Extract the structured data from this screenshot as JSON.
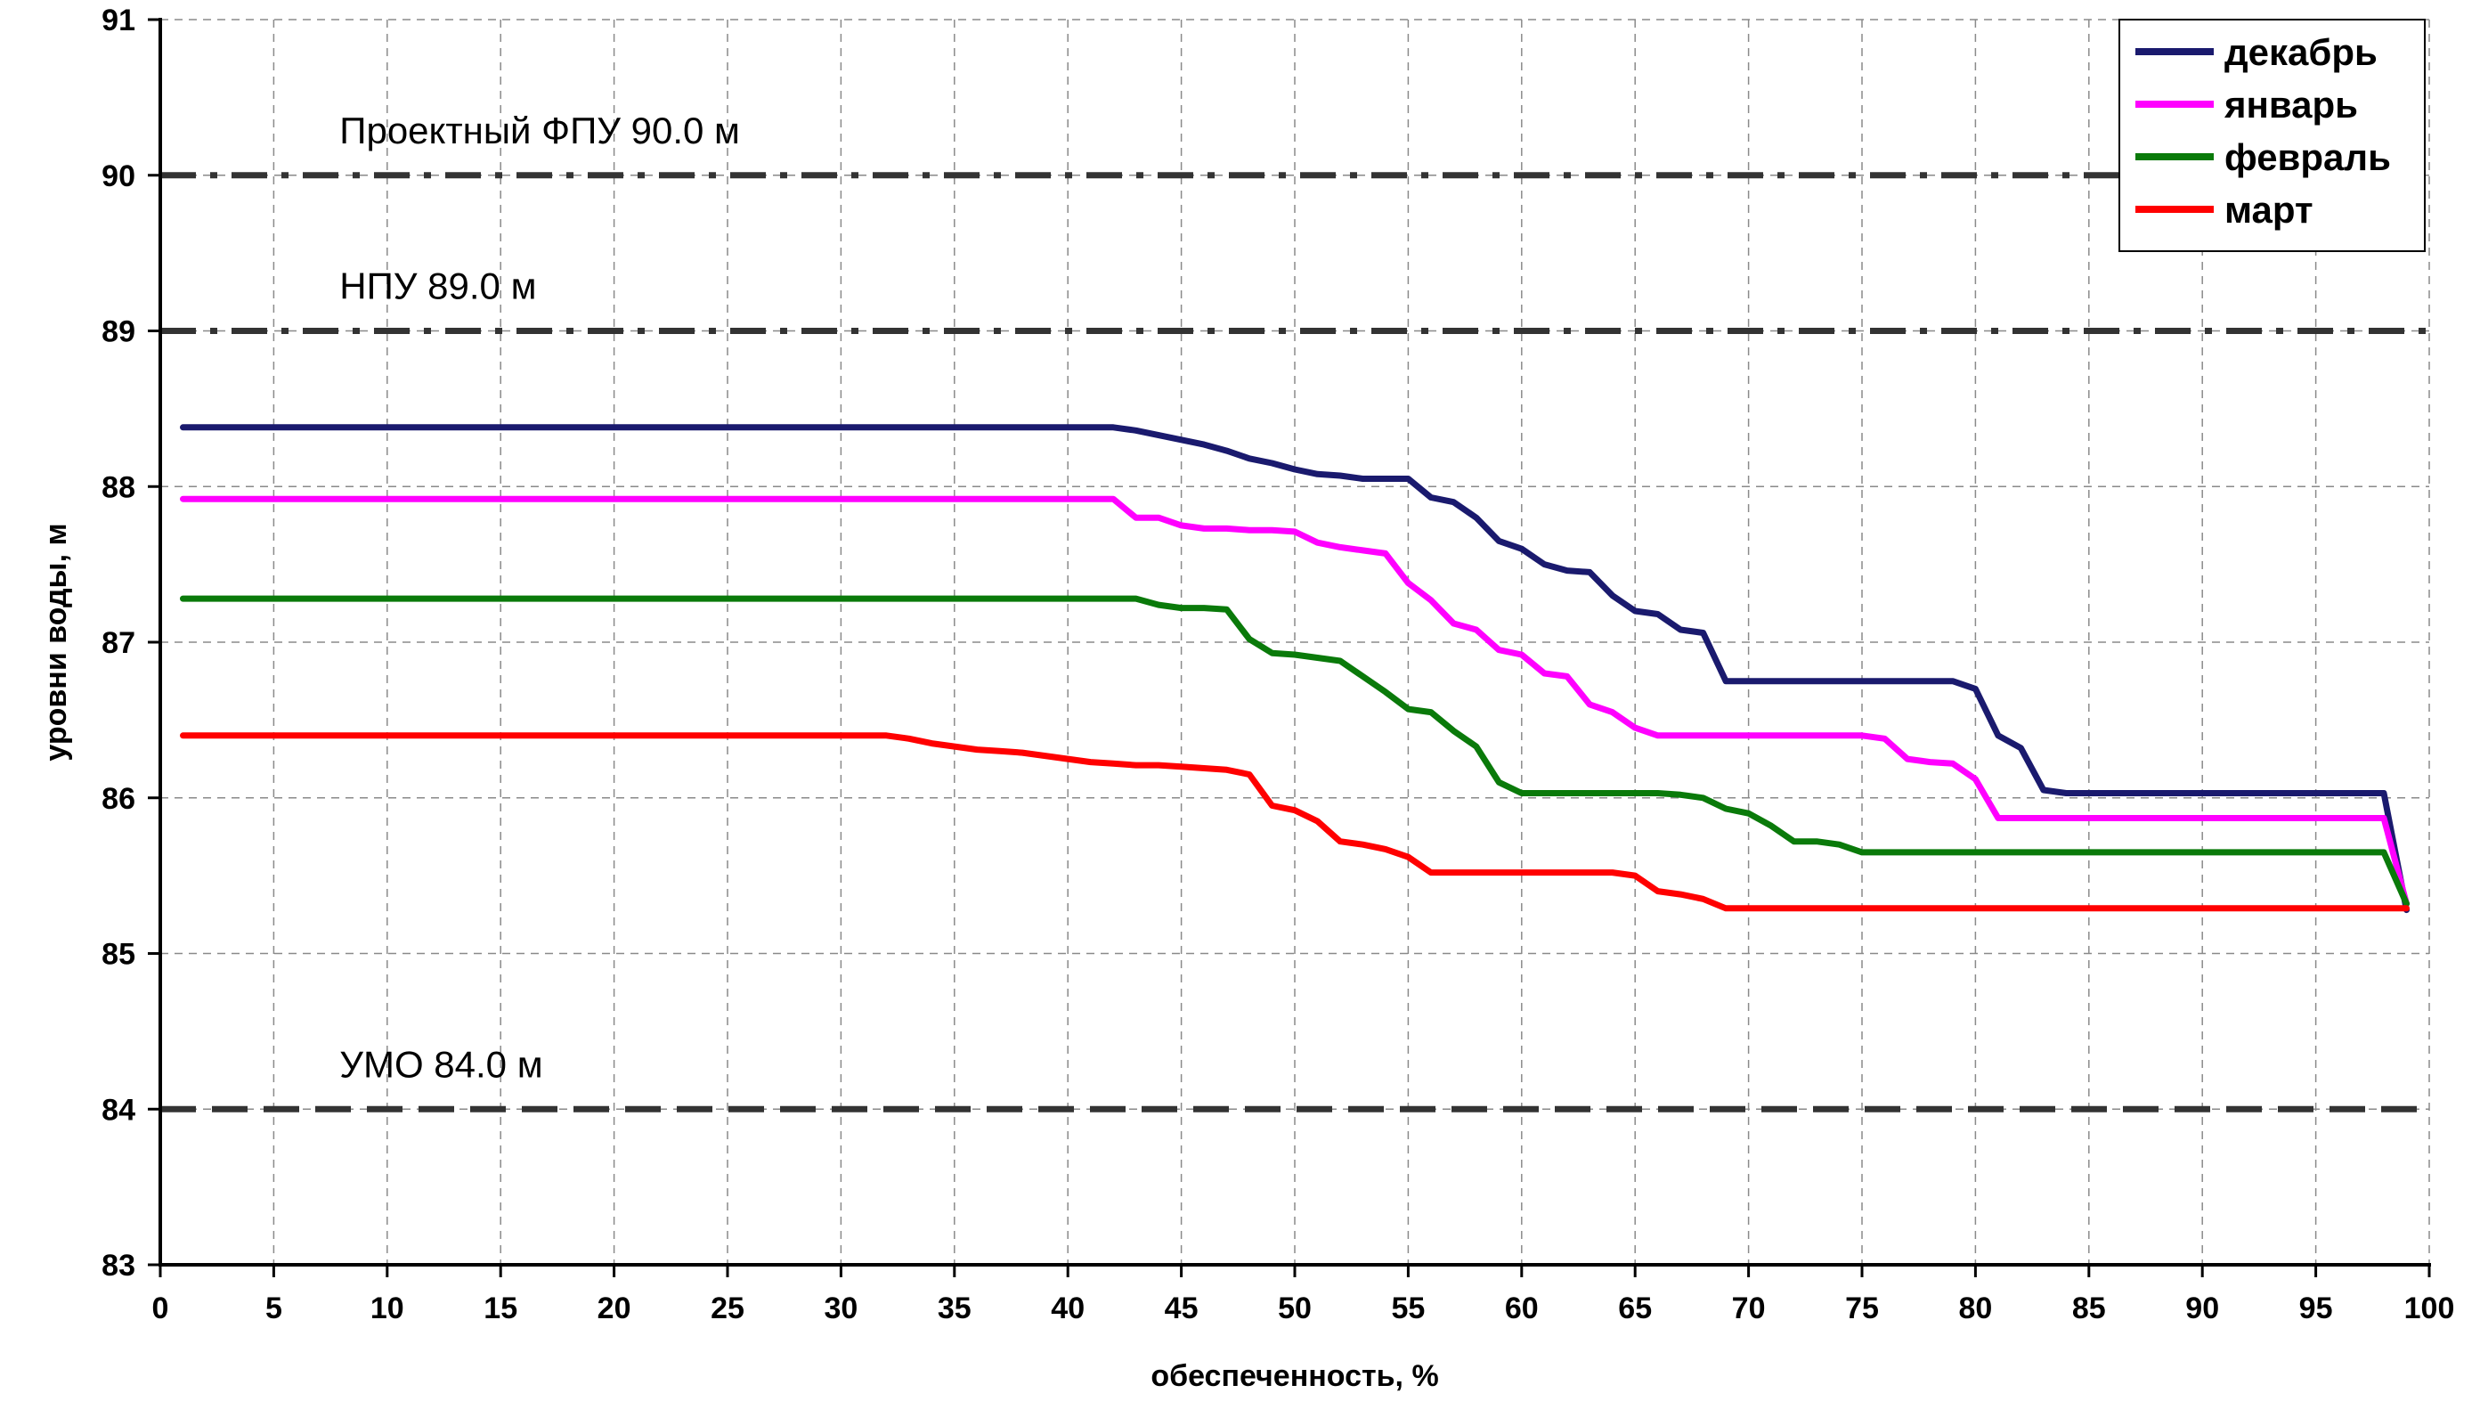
{
  "chart_data": {
    "type": "line",
    "title": "",
    "xlabel": "обеспеченность, %",
    "ylabel": "уровни воды, м",
    "xlim": [
      0,
      100
    ],
    "ylim": [
      83,
      91
    ],
    "xticks": [
      0,
      5,
      10,
      15,
      20,
      25,
      30,
      35,
      40,
      45,
      50,
      55,
      60,
      65,
      70,
      75,
      80,
      85,
      90,
      95,
      100
    ],
    "yticks": [
      83,
      84,
      85,
      86,
      87,
      88,
      89,
      90,
      91
    ],
    "grid": true,
    "legend_position": "top-right",
    "series": [
      {
        "name": "декабрь",
        "color": "#1a1a6e",
        "points": [
          [
            1,
            88.38
          ],
          [
            42,
            88.38
          ],
          [
            43,
            88.36
          ],
          [
            44,
            88.33
          ],
          [
            45,
            88.3
          ],
          [
            46,
            88.27
          ],
          [
            47,
            88.23
          ],
          [
            48,
            88.18
          ],
          [
            49,
            88.15
          ],
          [
            50,
            88.11
          ],
          [
            51,
            88.08
          ],
          [
            52,
            88.07
          ],
          [
            53,
            88.05
          ],
          [
            54,
            88.05
          ],
          [
            55,
            88.05
          ],
          [
            56,
            87.93
          ],
          [
            57,
            87.9
          ],
          [
            58,
            87.8
          ],
          [
            59,
            87.65
          ],
          [
            60,
            87.6
          ],
          [
            61,
            87.5
          ],
          [
            62,
            87.46
          ],
          [
            63,
            87.45
          ],
          [
            64,
            87.3
          ],
          [
            65,
            87.2
          ],
          [
            66,
            87.18
          ],
          [
            67,
            87.08
          ],
          [
            68,
            87.06
          ],
          [
            69,
            86.75
          ],
          [
            70,
            86.75
          ],
          [
            75,
            86.75
          ],
          [
            79,
            86.75
          ],
          [
            80,
            86.7
          ],
          [
            81,
            86.4
          ],
          [
            82,
            86.32
          ],
          [
            83,
            86.05
          ],
          [
            84,
            86.03
          ],
          [
            85,
            86.03
          ],
          [
            98,
            86.03
          ],
          [
            99,
            85.28
          ]
        ]
      },
      {
        "name": "январь",
        "color": "#ff00ff",
        "points": [
          [
            1,
            87.92
          ],
          [
            42,
            87.92
          ],
          [
            43,
            87.8
          ],
          [
            44,
            87.8
          ],
          [
            45,
            87.75
          ],
          [
            46,
            87.73
          ],
          [
            47,
            87.73
          ],
          [
            48,
            87.72
          ],
          [
            49,
            87.72
          ],
          [
            50,
            87.71
          ],
          [
            51,
            87.64
          ],
          [
            52,
            87.61
          ],
          [
            53,
            87.59
          ],
          [
            54,
            87.57
          ],
          [
            55,
            87.38
          ],
          [
            56,
            87.27
          ],
          [
            57,
            87.12
          ],
          [
            58,
            87.08
          ],
          [
            59,
            86.95
          ],
          [
            60,
            86.92
          ],
          [
            61,
            86.8
          ],
          [
            62,
            86.78
          ],
          [
            63,
            86.6
          ],
          [
            64,
            86.55
          ],
          [
            65,
            86.45
          ],
          [
            66,
            86.4
          ],
          [
            75,
            86.4
          ],
          [
            76,
            86.38
          ],
          [
            77,
            86.25
          ],
          [
            78,
            86.23
          ],
          [
            79,
            86.22
          ],
          [
            80,
            86.12
          ],
          [
            81,
            85.87
          ],
          [
            98,
            85.87
          ],
          [
            99,
            85.32
          ]
        ]
      },
      {
        "name": "февраль",
        "color": "#0a7a0a",
        "points": [
          [
            1,
            87.28
          ],
          [
            43,
            87.28
          ],
          [
            44,
            87.24
          ],
          [
            45,
            87.22
          ],
          [
            46,
            87.22
          ],
          [
            47,
            87.21
          ],
          [
            48,
            87.02
          ],
          [
            49,
            86.93
          ],
          [
            50,
            86.92
          ],
          [
            51,
            86.9
          ],
          [
            52,
            86.88
          ],
          [
            53,
            86.78
          ],
          [
            54,
            86.68
          ],
          [
            55,
            86.57
          ],
          [
            56,
            86.55
          ],
          [
            57,
            86.43
          ],
          [
            58,
            86.33
          ],
          [
            59,
            86.1
          ],
          [
            60,
            86.03
          ],
          [
            66,
            86.03
          ],
          [
            67,
            86.02
          ],
          [
            68,
            86.0
          ],
          [
            69,
            85.93
          ],
          [
            70,
            85.9
          ],
          [
            71,
            85.82
          ],
          [
            72,
            85.72
          ],
          [
            73,
            85.72
          ],
          [
            74,
            85.7
          ],
          [
            75,
            85.65
          ],
          [
            98,
            85.65
          ],
          [
            99,
            85.32
          ]
        ]
      },
      {
        "name": "март",
        "color": "#ff0000",
        "points": [
          [
            1,
            86.4
          ],
          [
            32,
            86.4
          ],
          [
            33,
            86.38
          ],
          [
            34,
            86.35
          ],
          [
            35,
            86.33
          ],
          [
            36,
            86.31
          ],
          [
            37,
            86.3
          ],
          [
            38,
            86.29
          ],
          [
            39,
            86.27
          ],
          [
            40,
            86.25
          ],
          [
            41,
            86.23
          ],
          [
            42,
            86.22
          ],
          [
            43,
            86.21
          ],
          [
            44,
            86.21
          ],
          [
            45,
            86.2
          ],
          [
            46,
            86.19
          ],
          [
            47,
            86.18
          ],
          [
            48,
            86.15
          ],
          [
            49,
            85.95
          ],
          [
            50,
            85.92
          ],
          [
            51,
            85.85
          ],
          [
            52,
            85.72
          ],
          [
            53,
            85.7
          ],
          [
            54,
            85.67
          ],
          [
            55,
            85.62
          ],
          [
            56,
            85.52
          ],
          [
            57,
            85.52
          ],
          [
            64,
            85.52
          ],
          [
            65,
            85.5
          ],
          [
            66,
            85.4
          ],
          [
            67,
            85.38
          ],
          [
            68,
            85.35
          ],
          [
            69,
            85.29
          ],
          [
            98,
            85.29
          ],
          [
            99,
            85.29
          ]
        ]
      }
    ],
    "reference_lines": [
      {
        "y": 90,
        "label": "Проектный ФПУ 90.0 м",
        "style": "dash-dot",
        "color": "#333333"
      },
      {
        "y": 89,
        "label": "НПУ 89.0 м",
        "style": "dash-dot",
        "color": "#333333"
      },
      {
        "y": 84,
        "label": "УМО 84.0 м",
        "style": "dash",
        "color": "#333333"
      }
    ]
  }
}
